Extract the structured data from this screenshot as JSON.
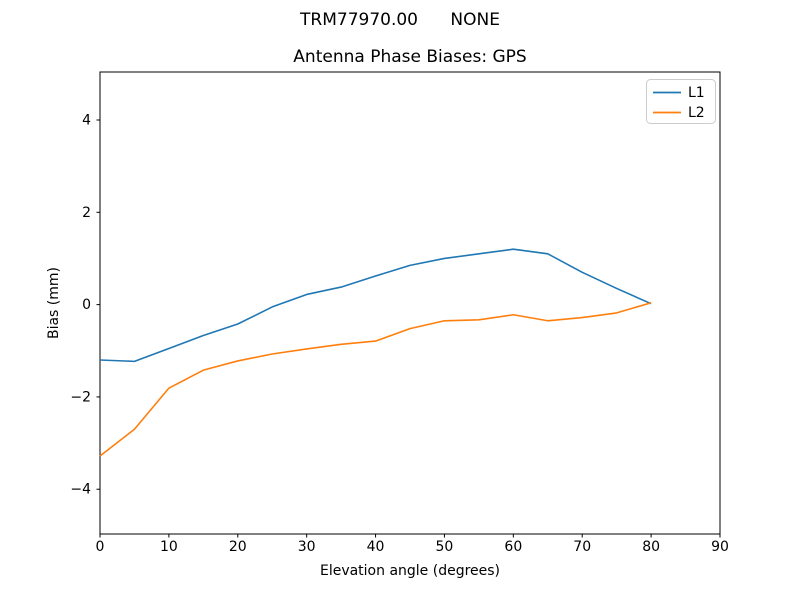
{
  "figure": {
    "suptitle": "TRM77970.00      NONE"
  },
  "chart_data": {
    "type": "line",
    "title": "Antenna Phase Biases: GPS",
    "xlabel": "Elevation angle (degrees)",
    "ylabel": "Bias (mm)",
    "x": [
      0,
      5,
      10,
      15,
      20,
      25,
      30,
      35,
      40,
      45,
      50,
      55,
      60,
      65,
      70,
      75,
      80
    ],
    "series": [
      {
        "name": "L1",
        "color": "#1f77b4",
        "values": [
          -1.2,
          -1.23,
          -0.95,
          -0.67,
          -0.42,
          -0.05,
          0.22,
          0.38,
          0.62,
          0.85,
          1.0,
          1.1,
          1.2,
          1.1,
          0.7,
          0.35,
          0.02
        ]
      },
      {
        "name": "L2",
        "color": "#ff7f0e",
        "values": [
          -3.28,
          -2.7,
          -1.81,
          -1.42,
          -1.22,
          -1.07,
          -0.96,
          -0.86,
          -0.79,
          -0.52,
          -0.35,
          -0.33,
          -0.22,
          -0.35,
          -0.28,
          -0.18,
          0.04
        ]
      }
    ],
    "xlim": [
      0,
      90
    ],
    "ylim": [
      -4.97,
      5.04
    ],
    "xticks": [
      0,
      10,
      20,
      30,
      40,
      50,
      60,
      70,
      80,
      90
    ],
    "xtick_labels": [
      "0",
      "10",
      "20",
      "30",
      "40",
      "50",
      "60",
      "70",
      "80",
      "90"
    ],
    "yticks": [
      -4,
      -2,
      0,
      2,
      4
    ],
    "ytick_labels": [
      "−4",
      "−2",
      "0",
      "2",
      "4"
    ],
    "legend": {
      "location": "upper right",
      "entries": [
        "L1",
        "L2"
      ]
    },
    "grid": false,
    "axis_color": "#000000",
    "legend_border_color": "#cccccc",
    "background_color": "#ffffff"
  }
}
